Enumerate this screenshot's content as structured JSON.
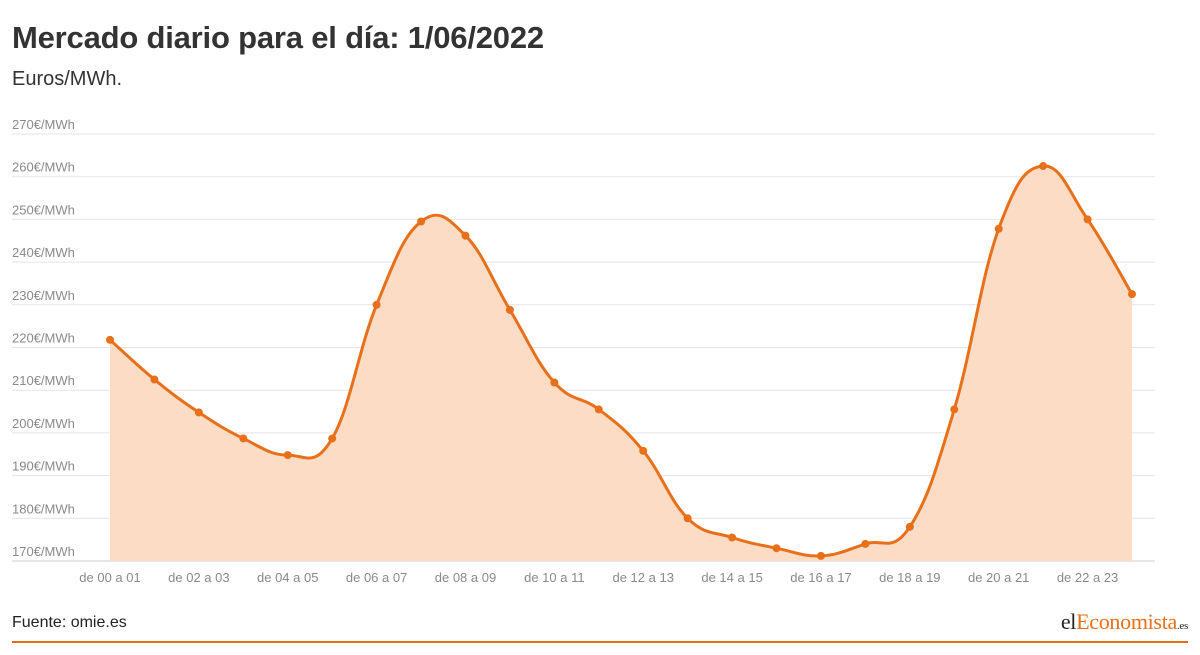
{
  "header": {
    "title": "Mercado diario para el día: 1/06/2022",
    "subtitle": "Euros/MWh."
  },
  "footer": {
    "source": "Fuente: omie.es",
    "logo_part1": "el",
    "logo_part2": "Economista",
    "logo_part3": ".es"
  },
  "colors": {
    "line": "#e8701a",
    "area": "#fcdcc4",
    "accent": "#e8701a"
  },
  "chart_data": {
    "type": "area",
    "x_tick_labels": [
      "de 00 a 01",
      "de 02 a 03",
      "de 04 a 05",
      "de 06 a 07",
      "de 08 a 09",
      "de 10 a 11",
      "de 12 a 13",
      "de 14 a 15",
      "de 16 a 17",
      "de 18 a 19",
      "de 20 a 21",
      "de 22 a 23"
    ],
    "y_tick_labels": [
      "170€/MWh",
      "180€/MWh",
      "190€/MWh",
      "200€/MWh",
      "210€/MWh",
      "220€/MWh",
      "230€/MWh",
      "240€/MWh",
      "250€/MWh",
      "260€/MWh",
      "270€/MWh"
    ],
    "ylim": [
      170,
      270
    ],
    "grid": true,
    "series": [
      {
        "values": [
          221.8,
          212.5,
          204.8,
          198.7,
          194.8,
          198.7,
          230.0,
          249.5,
          246.2,
          228.8,
          211.8,
          205.5,
          195.8,
          180.0,
          175.5,
          173.0,
          171.2,
          174.0,
          178.0,
          205.5,
          247.8,
          262.5,
          250.0,
          232.5
        ]
      }
    ]
  }
}
